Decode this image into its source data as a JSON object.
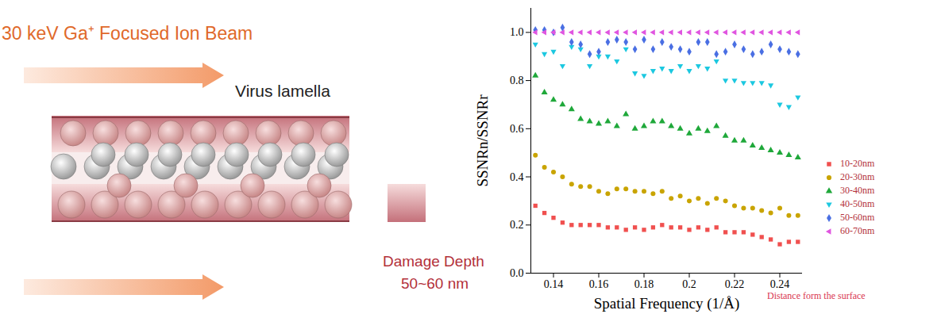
{
  "diagram": {
    "beam_label": "30 keV Ga⁺ Focused Ion Beam",
    "sample_label": "Virus lamella",
    "damage_label": "Damage Depth",
    "damage_value": "50~60 nm"
  },
  "chart_data": {
    "type": "scatter",
    "x_label": "Spatial Frequency (1/Å)",
    "y_label": "SSNRn/SSNRr",
    "legend_title": "Distance form the surface",
    "x": [
      0.132,
      0.136,
      0.14,
      0.144,
      0.148,
      0.152,
      0.156,
      0.16,
      0.164,
      0.168,
      0.172,
      0.176,
      0.18,
      0.184,
      0.188,
      0.192,
      0.196,
      0.2,
      0.204,
      0.208,
      0.212,
      0.216,
      0.22,
      0.224,
      0.228,
      0.232,
      0.236,
      0.24,
      0.244,
      0.248
    ],
    "series": [
      {
        "name": "10-20nm",
        "color": "#f0504f",
        "marker": "square",
        "values": [
          0.28,
          0.25,
          0.23,
          0.21,
          0.2,
          0.2,
          0.2,
          0.2,
          0.19,
          0.19,
          0.18,
          0.19,
          0.18,
          0.19,
          0.2,
          0.19,
          0.19,
          0.18,
          0.19,
          0.18,
          0.19,
          0.17,
          0.17,
          0.17,
          0.16,
          0.15,
          0.14,
          0.12,
          0.13,
          0.13
        ]
      },
      {
        "name": "20-30nm",
        "color": "#c9a400",
        "marker": "circle",
        "values": [
          0.49,
          0.44,
          0.42,
          0.4,
          0.37,
          0.36,
          0.36,
          0.34,
          0.33,
          0.35,
          0.35,
          0.34,
          0.34,
          0.33,
          0.34,
          0.31,
          0.32,
          0.3,
          0.31,
          0.29,
          0.31,
          0.3,
          0.28,
          0.27,
          0.27,
          0.26,
          0.25,
          0.27,
          0.24,
          0.24
        ]
      },
      {
        "name": "30-40nm",
        "color": "#1fa83a",
        "marker": "triangle-up",
        "values": [
          0.82,
          0.75,
          0.72,
          0.7,
          0.68,
          0.64,
          0.63,
          0.62,
          0.63,
          0.61,
          0.66,
          0.6,
          0.61,
          0.63,
          0.63,
          0.61,
          0.6,
          0.58,
          0.6,
          0.59,
          0.61,
          0.57,
          0.55,
          0.55,
          0.53,
          0.52,
          0.51,
          0.5,
          0.49,
          0.48
        ]
      },
      {
        "name": "40-50nm",
        "color": "#1cc8e0",
        "marker": "triangle-down",
        "values": [
          0.95,
          0.91,
          0.92,
          0.86,
          0.94,
          0.93,
          0.86,
          0.9,
          0.9,
          0.88,
          0.93,
          0.83,
          0.82,
          0.84,
          0.85,
          0.84,
          0.86,
          0.84,
          0.86,
          0.85,
          0.88,
          0.8,
          0.8,
          0.79,
          0.79,
          0.79,
          0.78,
          0.7,
          0.69,
          0.73
        ]
      },
      {
        "name": "50-60nm",
        "color": "#4a6fe3",
        "marker": "diamond",
        "values": [
          1.01,
          1.01,
          1.0,
          1.02,
          0.96,
          0.95,
          0.91,
          0.92,
          0.96,
          0.97,
          0.96,
          0.93,
          0.97,
          0.93,
          0.96,
          0.94,
          0.93,
          0.92,
          0.96,
          0.96,
          0.91,
          0.92,
          0.95,
          0.93,
          0.91,
          0.92,
          0.95,
          0.93,
          0.92,
          0.91
        ]
      },
      {
        "name": "60-70nm",
        "color": "#e055e0",
        "marker": "triangle-left",
        "values": [
          1.0,
          1.0,
          1.0,
          1.0,
          1.0,
          1.0,
          1.0,
          1.0,
          1.0,
          1.0,
          1.0,
          1.0,
          1.0,
          1.0,
          1.0,
          1.0,
          1.0,
          1.0,
          1.0,
          1.0,
          1.0,
          1.0,
          1.0,
          1.0,
          1.0,
          1.0,
          1.0,
          1.0,
          1.0,
          1.0
        ]
      }
    ],
    "xlim": [
      0.13,
      0.25
    ],
    "ylim": [
      0,
      1.1
    ],
    "xticks": [
      0.14,
      0.16,
      0.18,
      0.2,
      0.22,
      0.24
    ],
    "yticks": [
      {
        "value": 0,
        "label": "0.0"
      },
      0.2,
      0.4,
      0.6,
      0.8,
      {
        "value": 1,
        "label": "1.0"
      }
    ],
    "grid": false,
    "legend": "right"
  }
}
